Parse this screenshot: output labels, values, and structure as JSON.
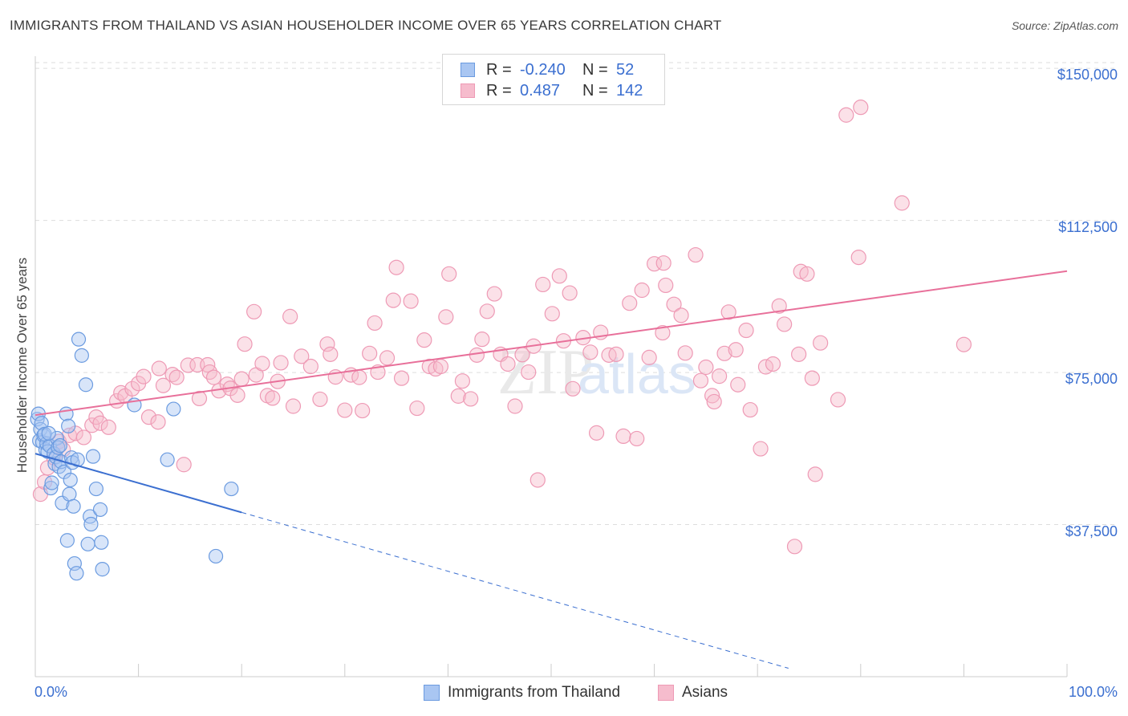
{
  "title": "IMMIGRANTS FROM THAILAND VS ASIAN HOUSEHOLDER INCOME OVER 65 YEARS CORRELATION CHART",
  "source": "Source: ZipAtlas.com",
  "legend": {
    "r_label": "R =",
    "n_label": "N =",
    "rows": [
      {
        "r": "-0.240",
        "n": "52"
      },
      {
        "r": "0.487",
        "n": "142"
      }
    ]
  },
  "colors": {
    "blue": "#3b6fd0",
    "blue_fill": "#a9c6f2",
    "blue_stroke": "#6b9be0",
    "pink": "#e8709a",
    "pink_fill": "#f6bccd",
    "pink_stroke": "#ee9ab5",
    "grid": "#dddddd"
  },
  "chart_data": {
    "type": "scatter",
    "title": "IMMIGRANTS FROM THAILAND VS ASIAN HOUSEHOLDER INCOME OVER 65 YEARS CORRELATION CHART",
    "xlabel": "",
    "ylabel": "Householder Income Over 65 years",
    "xlim": [
      0,
      100
    ],
    "ylim": [
      0,
      153000
    ],
    "x_tick_labels": [
      "0.0%",
      "100.0%"
    ],
    "y_ticks": [
      37500,
      75000,
      112500,
      150000
    ],
    "y_tick_labels": [
      "$37,500",
      "$75,000",
      "$112,500",
      "$150,000"
    ],
    "grid": "horizontal dashed",
    "legend_position": "bottom",
    "series": [
      {
        "name": "Immigrants from Thailand",
        "R": -0.24,
        "N": 52,
        "trend": {
          "x0": 0,
          "y0": 55000,
          "x1": 20,
          "y1": 40500,
          "dashed_to_x": 73
        },
        "points": [
          [
            0.2,
            63500
          ],
          [
            0.3,
            64800
          ],
          [
            0.4,
            58200
          ],
          [
            0.5,
            61000
          ],
          [
            0.6,
            62500
          ],
          [
            0.7,
            57800
          ],
          [
            0.8,
            59500
          ],
          [
            1.0,
            56000
          ],
          [
            1.1,
            57500
          ],
          [
            1.2,
            55500
          ],
          [
            1.4,
            56900
          ],
          [
            1.5,
            46500
          ],
          [
            1.6,
            47800
          ],
          [
            1.8,
            55000
          ],
          [
            1.9,
            52500
          ],
          [
            2.0,
            54200
          ],
          [
            2.1,
            58800
          ],
          [
            2.2,
            56500
          ],
          [
            2.3,
            51800
          ],
          [
            2.5,
            53000
          ],
          [
            2.6,
            42800
          ],
          [
            2.8,
            50500
          ],
          [
            3.0,
            64800
          ],
          [
            3.1,
            33600
          ],
          [
            3.2,
            61800
          ],
          [
            3.3,
            45000
          ],
          [
            3.4,
            48500
          ],
          [
            3.5,
            54000
          ],
          [
            3.6,
            52800
          ],
          [
            3.7,
            42000
          ],
          [
            3.8,
            27900
          ],
          [
            4.0,
            25500
          ],
          [
            4.1,
            53500
          ],
          [
            4.2,
            83200
          ],
          [
            4.5,
            79200
          ],
          [
            4.9,
            72000
          ],
          [
            5.1,
            32700
          ],
          [
            5.3,
            39500
          ],
          [
            5.4,
            37600
          ],
          [
            5.6,
            54300
          ],
          [
            5.9,
            46300
          ],
          [
            6.3,
            41200
          ],
          [
            6.4,
            33100
          ],
          [
            6.5,
            26500
          ],
          [
            9.6,
            67000
          ],
          [
            12.8,
            53500
          ],
          [
            13.4,
            66000
          ],
          [
            17.5,
            29700
          ],
          [
            19.0,
            46300
          ],
          [
            0.9,
            59800
          ],
          [
            1.3,
            60000
          ],
          [
            2.4,
            57000
          ]
        ]
      },
      {
        "name": "Asians",
        "R": 0.487,
        "N": 142,
        "trend": {
          "x0": 0,
          "y0": 64500,
          "x1": 100,
          "y1": 100000
        },
        "points": [
          [
            0.5,
            45000
          ],
          [
            0.9,
            48000
          ],
          [
            1.2,
            51500
          ],
          [
            1.8,
            54000
          ],
          [
            2.3,
            58000
          ],
          [
            2.7,
            56000
          ],
          [
            3.3,
            59500
          ],
          [
            3.9,
            60000
          ],
          [
            4.7,
            59000
          ],
          [
            5.5,
            62000
          ],
          [
            5.9,
            64000
          ],
          [
            6.3,
            62500
          ],
          [
            7.1,
            61500
          ],
          [
            7.9,
            68000
          ],
          [
            8.3,
            70000
          ],
          [
            8.7,
            69200
          ],
          [
            9.4,
            71000
          ],
          [
            10.0,
            72300
          ],
          [
            10.5,
            74000
          ],
          [
            11.0,
            64000
          ],
          [
            11.9,
            62800
          ],
          [
            12.0,
            76000
          ],
          [
            12.4,
            71800
          ],
          [
            13.3,
            74500
          ],
          [
            13.7,
            73800
          ],
          [
            14.4,
            52300
          ],
          [
            14.8,
            76800
          ],
          [
            15.7,
            76900
          ],
          [
            15.9,
            68600
          ],
          [
            16.7,
            76900
          ],
          [
            16.9,
            75100
          ],
          [
            17.3,
            73800
          ],
          [
            17.8,
            70500
          ],
          [
            18.6,
            72100
          ],
          [
            18.9,
            71100
          ],
          [
            19.6,
            69400
          ],
          [
            20.0,
            73400
          ],
          [
            20.3,
            82000
          ],
          [
            21.2,
            90000
          ],
          [
            21.4,
            74400
          ],
          [
            22.0,
            77200
          ],
          [
            22.5,
            69300
          ],
          [
            23.0,
            68700
          ],
          [
            23.5,
            72800
          ],
          [
            23.8,
            77400
          ],
          [
            24.7,
            88800
          ],
          [
            25.0,
            66700
          ],
          [
            25.8,
            79000
          ],
          [
            26.7,
            76500
          ],
          [
            27.6,
            68400
          ],
          [
            28.3,
            82000
          ],
          [
            28.6,
            79500
          ],
          [
            29.1,
            73900
          ],
          [
            30.0,
            65700
          ],
          [
            30.6,
            74400
          ],
          [
            31.4,
            73800
          ],
          [
            31.7,
            65600
          ],
          [
            32.4,
            79700
          ],
          [
            32.9,
            87200
          ],
          [
            33.2,
            75100
          ],
          [
            34.1,
            78600
          ],
          [
            34.7,
            92800
          ],
          [
            35.0,
            100900
          ],
          [
            35.5,
            73600
          ],
          [
            36.4,
            92600
          ],
          [
            37.0,
            66200
          ],
          [
            37.7,
            83000
          ],
          [
            38.2,
            76500
          ],
          [
            38.8,
            75900
          ],
          [
            39.3,
            76500
          ],
          [
            39.8,
            88700
          ],
          [
            40.1,
            99300
          ],
          [
            41.0,
            69200
          ],
          [
            41.4,
            72900
          ],
          [
            42.2,
            68500
          ],
          [
            42.8,
            79300
          ],
          [
            43.3,
            83200
          ],
          [
            43.8,
            90100
          ],
          [
            44.5,
            94400
          ],
          [
            45.1,
            79500
          ],
          [
            45.8,
            77100
          ],
          [
            46.5,
            66700
          ],
          [
            47.2,
            79400
          ],
          [
            47.8,
            75100
          ],
          [
            48.3,
            81500
          ],
          [
            48.7,
            48500
          ],
          [
            49.2,
            96700
          ],
          [
            50.1,
            89500
          ],
          [
            50.8,
            98800
          ],
          [
            51.2,
            82800
          ],
          [
            51.8,
            94600
          ],
          [
            52.1,
            71000
          ],
          [
            53.1,
            83600
          ],
          [
            53.8,
            80000
          ],
          [
            54.4,
            60100
          ],
          [
            54.8,
            84900
          ],
          [
            55.6,
            79300
          ],
          [
            56.3,
            79500
          ],
          [
            57.0,
            59300
          ],
          [
            57.6,
            92100
          ],
          [
            58.3,
            58700
          ],
          [
            58.8,
            95300
          ],
          [
            59.5,
            78700
          ],
          [
            60.0,
            101800
          ],
          [
            60.8,
            84800
          ],
          [
            60.9,
            102000
          ],
          [
            61.1,
            96500
          ],
          [
            61.9,
            91800
          ],
          [
            62.6,
            89100
          ],
          [
            63.0,
            79800
          ],
          [
            64.0,
            104000
          ],
          [
            65.0,
            76300
          ],
          [
            65.6,
            69300
          ],
          [
            65.8,
            67800
          ],
          [
            66.3,
            74100
          ],
          [
            66.8,
            79700
          ],
          [
            67.2,
            89900
          ],
          [
            67.9,
            80600
          ],
          [
            68.9,
            85400
          ],
          [
            69.3,
            65800
          ],
          [
            70.3,
            56200
          ],
          [
            70.8,
            76400
          ],
          [
            71.5,
            77100
          ],
          [
            72.1,
            91400
          ],
          [
            72.6,
            86900
          ],
          [
            73.6,
            32100
          ],
          [
            74.0,
            79500
          ],
          [
            74.2,
            99900
          ],
          [
            74.8,
            99300
          ],
          [
            75.3,
            73600
          ],
          [
            75.6,
            49900
          ],
          [
            76.1,
            82300
          ],
          [
            77.8,
            68300
          ],
          [
            78.6,
            138500
          ],
          [
            79.8,
            103400
          ],
          [
            80.0,
            140400
          ],
          [
            84.0,
            116800
          ],
          [
            90.0,
            81900
          ],
          [
            64.5,
            73000
          ],
          [
            68.1,
            72000
          ]
        ]
      }
    ]
  }
}
